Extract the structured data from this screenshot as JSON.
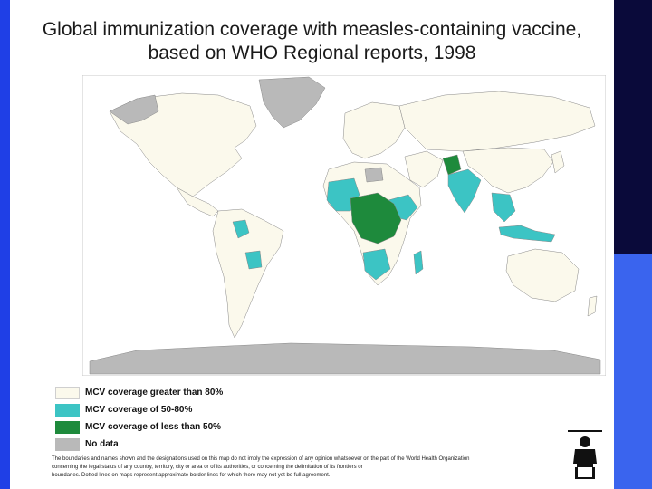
{
  "title_line1": "Global immunization coverage with measles-containing vaccine,",
  "title_line2": "based on WHO Regional reports, 1998",
  "legend": [
    {
      "label": "MCV coverage greater than 80%",
      "color": "#fbf9ec"
    },
    {
      "label": "MCV coverage of 50-80%",
      "color": "#3cc4c4"
    },
    {
      "label": "MCV coverage of less than 50%",
      "color": "#1e8a3c"
    },
    {
      "label": "No data",
      "color": "#b9b9b9"
    }
  ],
  "disclaimer": [
    "The boundaries and names shown and the designations used on this map do not imply the expression of any opinion whatsoever on the part of the World Health Organization",
    "concerning the legal status of any country, territory, city or area or of its authorities, or concerning the delimitation of its frontiers or",
    "boundaries. Dotted lines on maps represent approximate border lines for which there may not yet be full agreement."
  ],
  "colors": {
    "ocean": "#ffffff",
    "frame": "#c8c8c8",
    "high": "#fbf9ec",
    "medium": "#3cc4c4",
    "low": "#1e8a3c",
    "nodata": "#b9b9b9"
  }
}
